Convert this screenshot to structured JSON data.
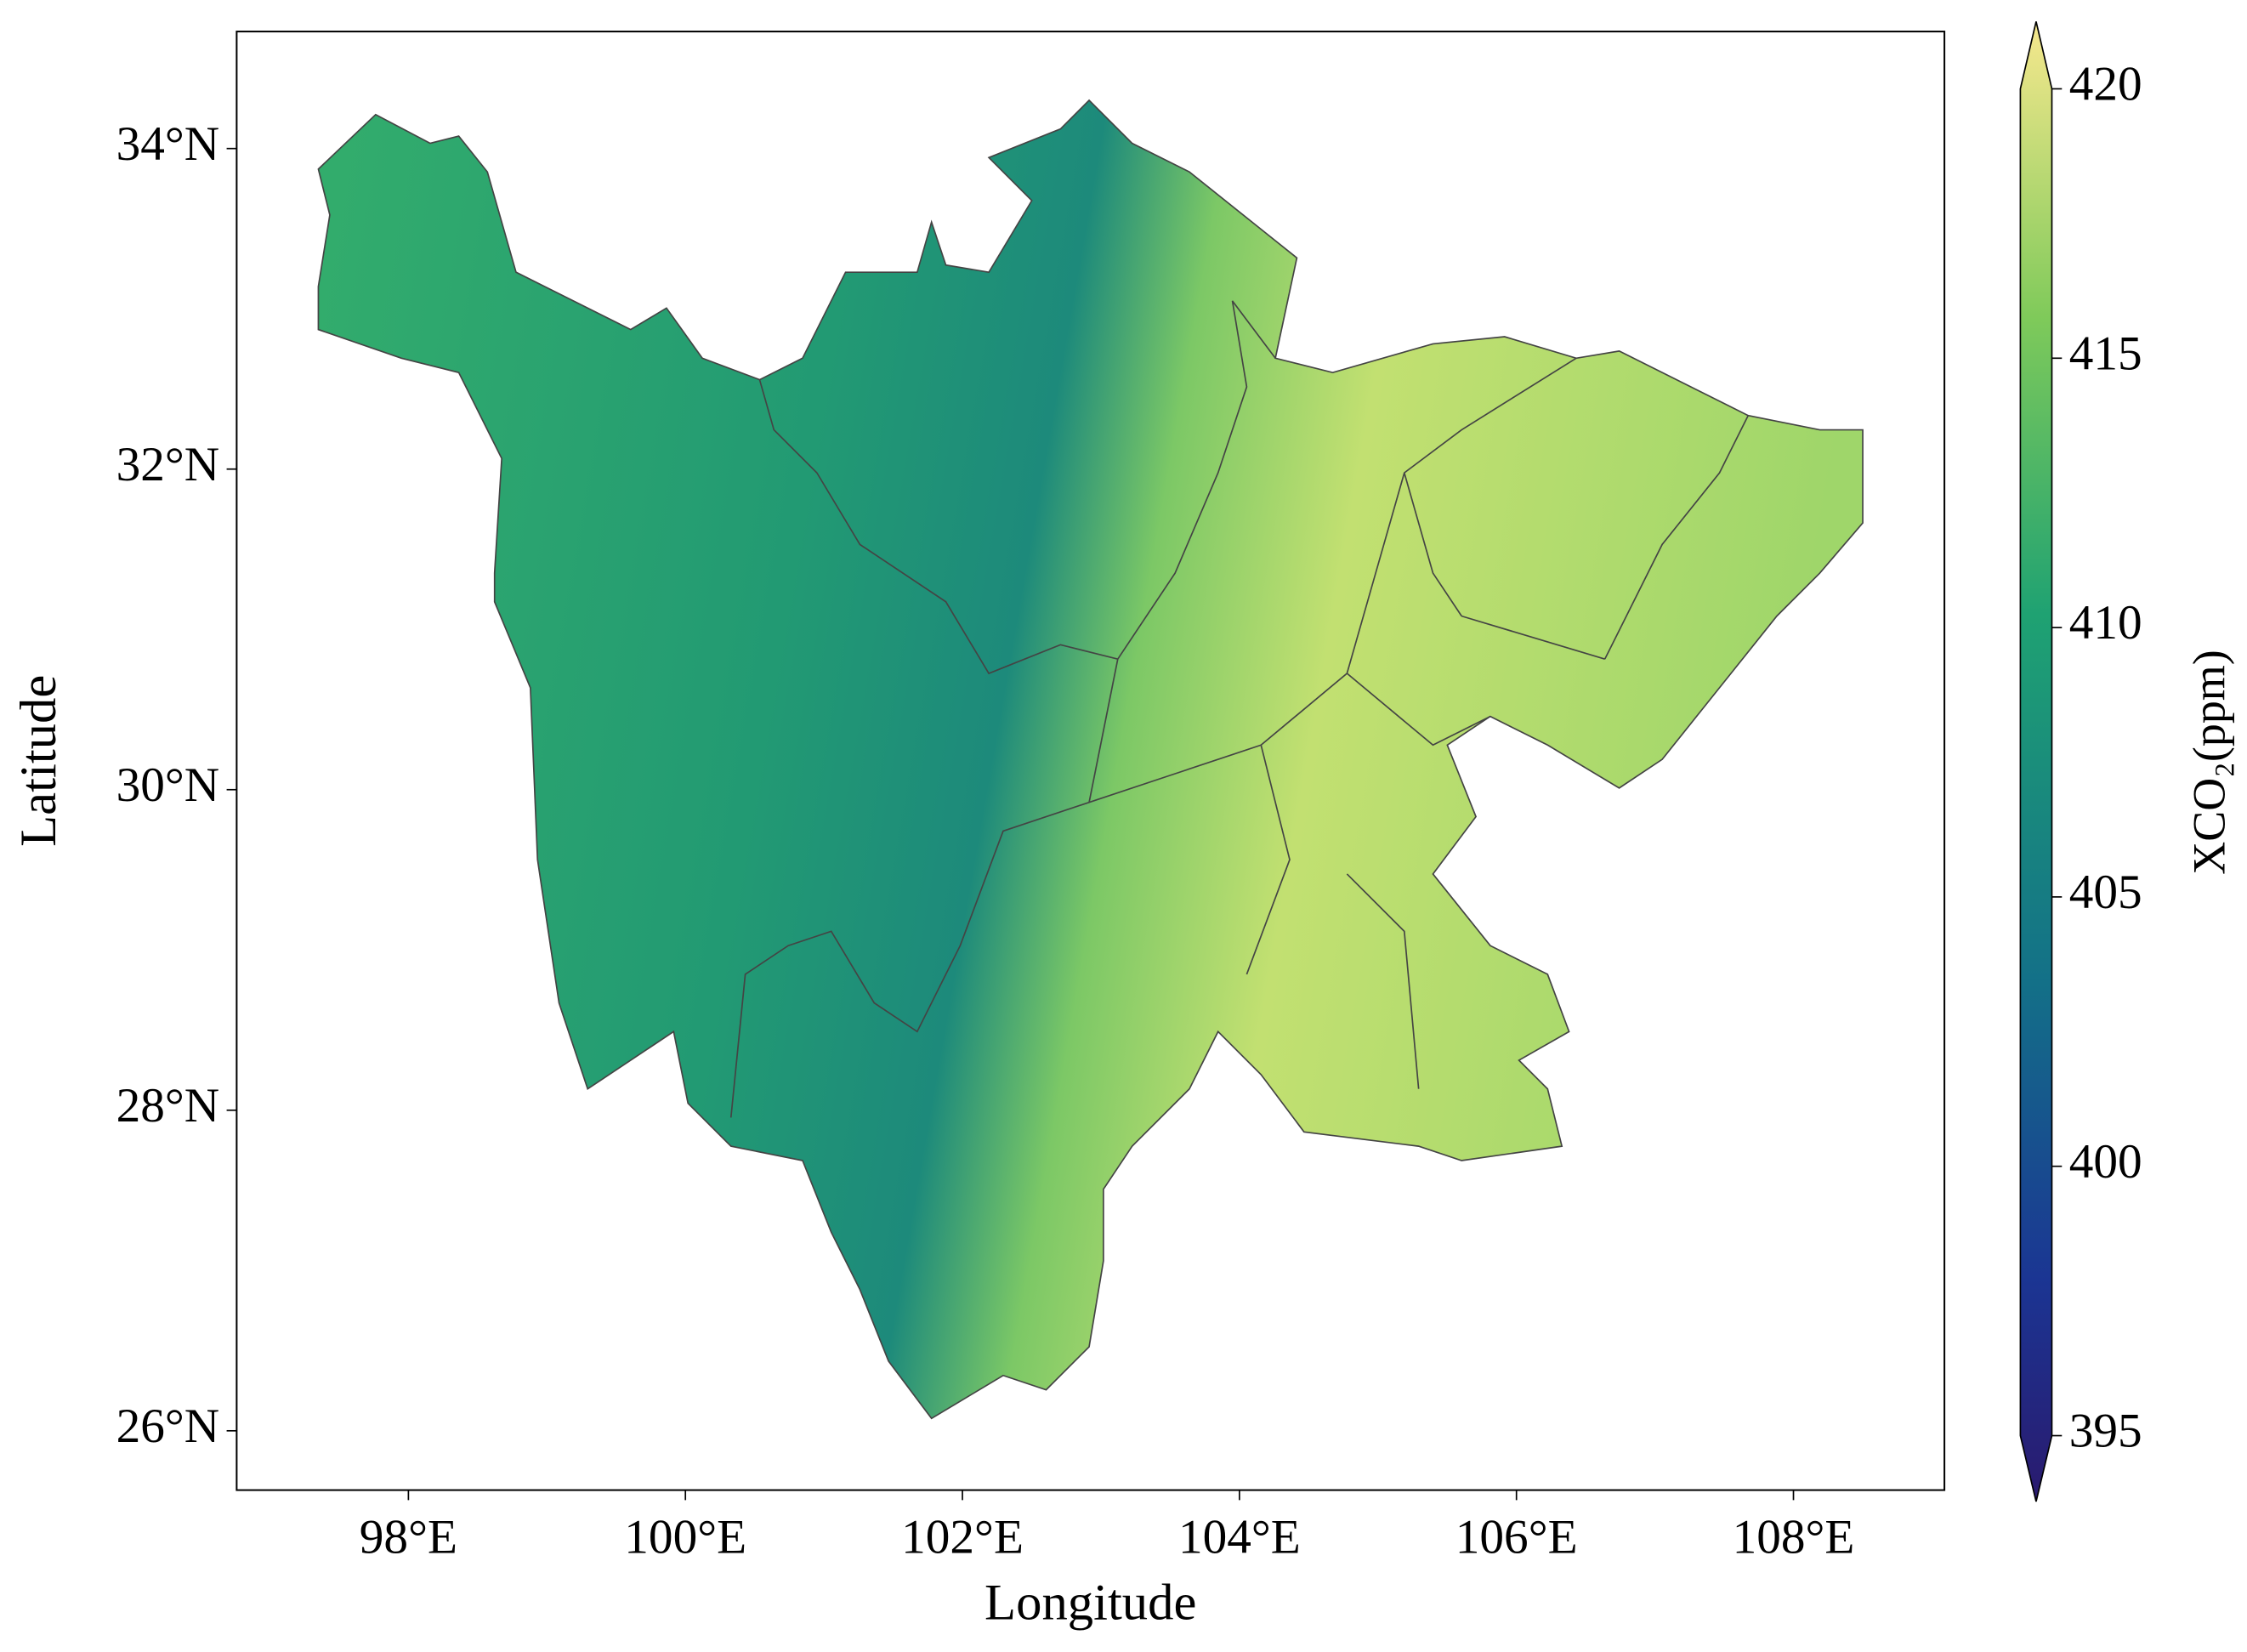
{
  "chart_data": {
    "type": "map",
    "xlabel": "Longitude",
    "ylabel": "Latitude",
    "xlim": [
      96.76,
      109.09
    ],
    "ylim": [
      25.63,
      34.73
    ],
    "xticks": [
      {
        "value": 98,
        "label": "98°E"
      },
      {
        "value": 100,
        "label": "100°E"
      },
      {
        "value": 102,
        "label": "102°E"
      },
      {
        "value": 104,
        "label": "104°E"
      },
      {
        "value": 106,
        "label": "106°E"
      },
      {
        "value": 108,
        "label": "108°E"
      }
    ],
    "yticks": [
      {
        "value": 26,
        "label": "26°N"
      },
      {
        "value": 28,
        "label": "28°N"
      },
      {
        "value": 30,
        "label": "30°N"
      },
      {
        "value": 32,
        "label": "32°N"
      },
      {
        "value": 34,
        "label": "34°N"
      }
    ],
    "colorbar": {
      "label": "XCO₂(ppm)",
      "lim": [
        395,
        420
      ],
      "ticks": [
        395,
        400,
        405,
        410,
        415,
        420
      ]
    }
  }
}
